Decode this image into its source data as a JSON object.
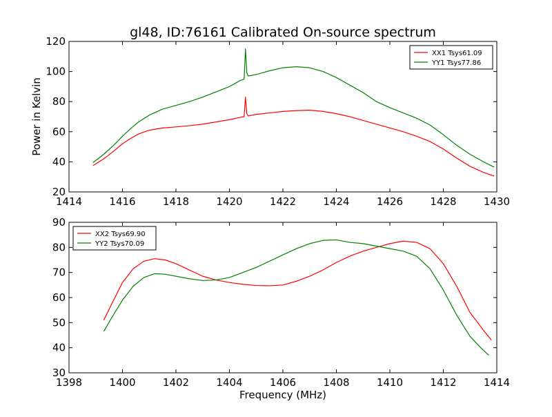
{
  "chart_data": [
    {
      "type": "line",
      "title": "gl48, ID:76161 Calibrated On-source spectrum",
      "xlabel": "",
      "ylabel": "Power in Kelvin",
      "xlim": [
        1414,
        1430
      ],
      "ylim": [
        20,
        120
      ],
      "xticks": [
        "1414",
        "1416",
        "1418",
        "1420",
        "1422",
        "1424",
        "1426",
        "1428",
        "1430"
      ],
      "yticks": [
        "20",
        "40",
        "60",
        "80",
        "100",
        "120"
      ],
      "legend_position": "top-right",
      "series": [
        {
          "name": "XX1 Tsys61.09",
          "color": "#ff0000",
          "points": [
            [
              1414.9,
              37.5
            ],
            [
              1415.3,
              42
            ],
            [
              1415.7,
              47.5
            ],
            [
              1416.0,
              52
            ],
            [
              1416.3,
              55.5
            ],
            [
              1416.6,
              58.5
            ],
            [
              1417.0,
              61
            ],
            [
              1417.5,
              62.5
            ],
            [
              1418.0,
              63.2
            ],
            [
              1418.5,
              64
            ],
            [
              1419.0,
              65
            ],
            [
              1419.5,
              66.5
            ],
            [
              1420.0,
              68
            ],
            [
              1420.4,
              69.5
            ],
            [
              1420.55,
              70
            ],
            [
              1420.6,
              83
            ],
            [
              1420.65,
              72
            ],
            [
              1420.7,
              70.5
            ],
            [
              1421.0,
              71.5
            ],
            [
              1421.5,
              72.5
            ],
            [
              1422.0,
              73.5
            ],
            [
              1422.5,
              74
            ],
            [
              1423.0,
              74.3
            ],
            [
              1423.5,
              73.5
            ],
            [
              1424.0,
              72
            ],
            [
              1424.5,
              70
            ],
            [
              1425.0,
              67.5
            ],
            [
              1425.5,
              65
            ],
            [
              1426.0,
              62.5
            ],
            [
              1426.5,
              60
            ],
            [
              1427.0,
              57
            ],
            [
              1427.5,
              53.5
            ],
            [
              1428.0,
              48.5
            ],
            [
              1428.5,
              42.5
            ],
            [
              1429.0,
              37
            ],
            [
              1429.5,
              33
            ],
            [
              1429.9,
              30.5
            ]
          ]
        },
        {
          "name": "YY1 Tsys77.86",
          "color": "#008000",
          "points": [
            [
              1414.9,
              39.5
            ],
            [
              1415.3,
              45
            ],
            [
              1415.7,
              51.5
            ],
            [
              1416.0,
              57
            ],
            [
              1416.3,
              62
            ],
            [
              1416.6,
              66.5
            ],
            [
              1417.0,
              71
            ],
            [
              1417.5,
              75
            ],
            [
              1418.0,
              77.5
            ],
            [
              1418.5,
              80
            ],
            [
              1419.0,
              83
            ],
            [
              1419.5,
              86.5
            ],
            [
              1420.0,
              90
            ],
            [
              1420.4,
              94
            ],
            [
              1420.55,
              95
            ],
            [
              1420.6,
              115
            ],
            [
              1420.65,
              99
            ],
            [
              1420.7,
              97
            ],
            [
              1421.0,
              98
            ],
            [
              1421.5,
              100.5
            ],
            [
              1422.0,
              102.5
            ],
            [
              1422.5,
              103.2
            ],
            [
              1423.0,
              102.5
            ],
            [
              1423.5,
              100
            ],
            [
              1424.0,
              96
            ],
            [
              1424.5,
              91
            ],
            [
              1425.0,
              86
            ],
            [
              1425.5,
              80
            ],
            [
              1426.0,
              76
            ],
            [
              1426.5,
              72.5
            ],
            [
              1427.0,
              69
            ],
            [
              1427.5,
              64.5
            ],
            [
              1428.0,
              58
            ],
            [
              1428.5,
              51
            ],
            [
              1429.0,
              45
            ],
            [
              1429.5,
              40
            ],
            [
              1429.9,
              36.5
            ]
          ]
        }
      ]
    },
    {
      "type": "line",
      "title": "",
      "xlabel": "Frequency (MHz)",
      "ylabel": "",
      "xlim": [
        1398,
        1414
      ],
      "ylim": [
        30,
        90
      ],
      "xticks": [
        "1398",
        "1400",
        "1402",
        "1404",
        "1406",
        "1408",
        "1410",
        "1412",
        "1414"
      ],
      "yticks": [
        "30",
        "40",
        "50",
        "60",
        "70",
        "80",
        "90"
      ],
      "legend_position": "top-left",
      "series": [
        {
          "name": "XX2 Tsys69.90",
          "color": "#ff0000",
          "points": [
            [
              1399.3,
              51
            ],
            [
              1399.6,
              57.5
            ],
            [
              1400.0,
              66
            ],
            [
              1400.4,
              71.5
            ],
            [
              1400.8,
              74.5
            ],
            [
              1401.2,
              75.5
            ],
            [
              1401.6,
              75
            ],
            [
              1402.0,
              73.5
            ],
            [
              1402.5,
              71
            ],
            [
              1403.0,
              68.5
            ],
            [
              1403.5,
              67
            ],
            [
              1404.0,
              66
            ],
            [
              1404.5,
              65.3
            ],
            [
              1405.0,
              64.8
            ],
            [
              1405.5,
              64.7
            ],
            [
              1406.0,
              65
            ],
            [
              1406.5,
              66.5
            ],
            [
              1407.0,
              68.5
            ],
            [
              1407.5,
              71
            ],
            [
              1408.0,
              74
            ],
            [
              1408.5,
              76.5
            ],
            [
              1409.0,
              78.5
            ],
            [
              1409.5,
              80
            ],
            [
              1410.0,
              81.5
            ],
            [
              1410.5,
              82.5
            ],
            [
              1411.0,
              82
            ],
            [
              1411.5,
              79.5
            ],
            [
              1412.0,
              73.5
            ],
            [
              1412.5,
              64.5
            ],
            [
              1413.0,
              54
            ],
            [
              1413.5,
              47
            ],
            [
              1413.8,
              43
            ]
          ]
        },
        {
          "name": "YY2 Tsys70.09",
          "color": "#008000",
          "points": [
            [
              1399.3,
              46.5
            ],
            [
              1399.6,
              52
            ],
            [
              1400.0,
              59
            ],
            [
              1400.4,
              64.5
            ],
            [
              1400.8,
              68
            ],
            [
              1401.2,
              69.5
            ],
            [
              1401.6,
              69.3
            ],
            [
              1402.0,
              68.5
            ],
            [
              1402.5,
              67.5
            ],
            [
              1403.0,
              66.8
            ],
            [
              1403.5,
              67
            ],
            [
              1404.0,
              68
            ],
            [
              1404.5,
              70
            ],
            [
              1405.0,
              72
            ],
            [
              1405.5,
              74.5
            ],
            [
              1406.0,
              77
            ],
            [
              1406.5,
              79.5
            ],
            [
              1407.0,
              81.5
            ],
            [
              1407.5,
              82.8
            ],
            [
              1408.0,
              83
            ],
            [
              1408.5,
              82
            ],
            [
              1409.0,
              81.5
            ],
            [
              1409.5,
              80.5
            ],
            [
              1410.0,
              79.5
            ],
            [
              1410.5,
              78.5
            ],
            [
              1411.0,
              76.5
            ],
            [
              1411.5,
              71.5
            ],
            [
              1412.0,
              63
            ],
            [
              1412.5,
              53
            ],
            [
              1413.0,
              44.5
            ],
            [
              1413.4,
              40
            ],
            [
              1413.7,
              37
            ]
          ]
        }
      ]
    }
  ]
}
